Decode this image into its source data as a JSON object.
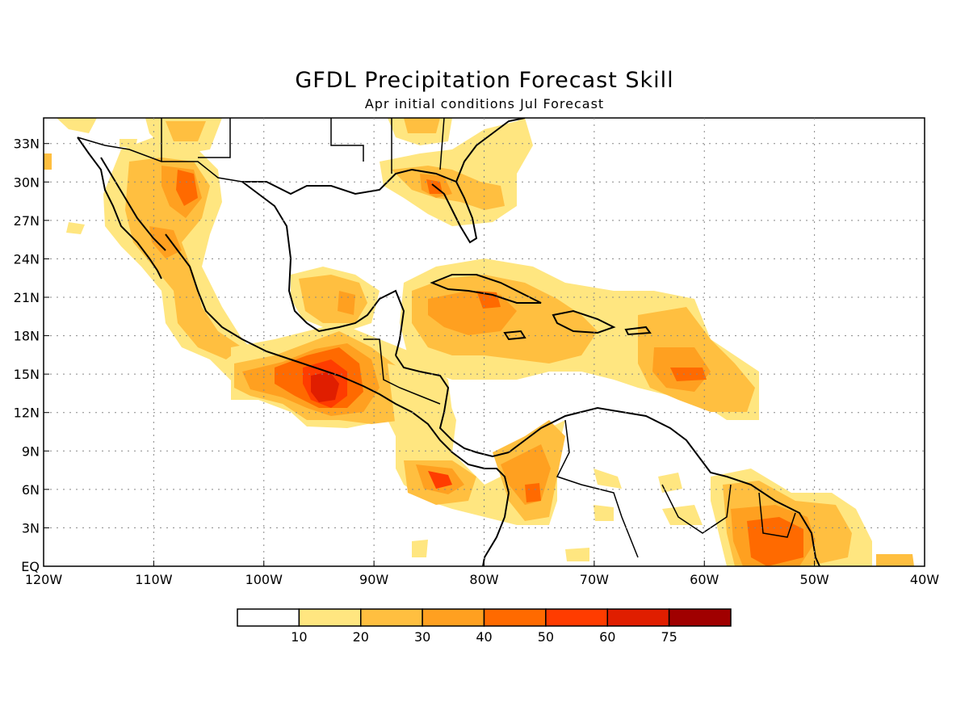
{
  "title": "GFDL Precipitation Forecast Skill",
  "subtitle": "Apr initial conditions  Jul Forecast",
  "map": {
    "lon_range": [
      -120,
      -40
    ],
    "lat_range": [
      0,
      35
    ],
    "lat_ticks": [
      {
        "value": 33,
        "label": "33N"
      },
      {
        "value": 30,
        "label": "30N"
      },
      {
        "value": 27,
        "label": "27N"
      },
      {
        "value": 24,
        "label": "24N"
      },
      {
        "value": 21,
        "label": "21N"
      },
      {
        "value": 18,
        "label": "18N"
      },
      {
        "value": 15,
        "label": "15N"
      },
      {
        "value": 12,
        "label": "12N"
      },
      {
        "value": 9,
        "label": "9N"
      },
      {
        "value": 6,
        "label": "6N"
      },
      {
        "value": 3,
        "label": "3N"
      },
      {
        "value": 0,
        "label": "EQ"
      }
    ],
    "lon_ticks": [
      {
        "value": -120,
        "label": "120W"
      },
      {
        "value": -110,
        "label": "110W"
      },
      {
        "value": -100,
        "label": "100W"
      },
      {
        "value": -90,
        "label": "90W"
      },
      {
        "value": -80,
        "label": "80W"
      },
      {
        "value": -70,
        "label": "70W"
      },
      {
        "value": -60,
        "label": "60W"
      },
      {
        "value": -50,
        "label": "50W"
      },
      {
        "value": -40,
        "label": "40W"
      }
    ],
    "grid": true
  },
  "colorbar": {
    "labels": [
      "10",
      "20",
      "30",
      "40",
      "50",
      "60",
      "75"
    ],
    "colors": [
      "#ffffff",
      "#ffe680",
      "#ffbf40",
      "#ffa020",
      "#ff6a00",
      "#ff3c00",
      "#e01e00",
      "#a00000"
    ]
  },
  "colors": {
    "c10": "#ffe680",
    "c20": "#ffbf40",
    "c30": "#ffa020",
    "c40": "#ff6a00",
    "c50": "#ff3c00",
    "c60": "#e01e00"
  }
}
